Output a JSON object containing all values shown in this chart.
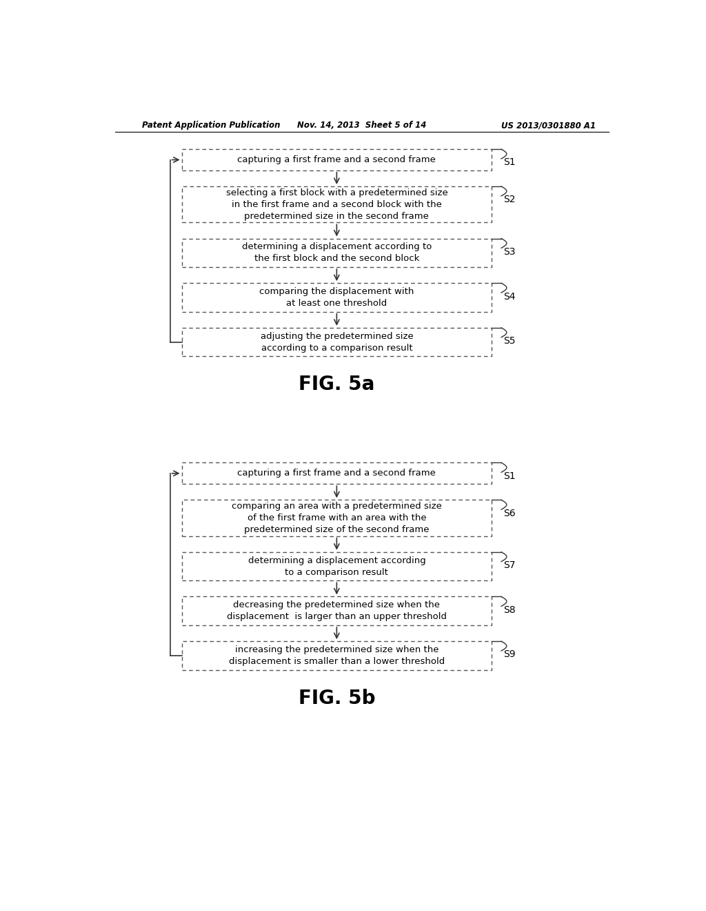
{
  "header_left": "Patent Application Publication",
  "header_mid": "Nov. 14, 2013  Sheet 5 of 14",
  "header_right": "US 2013/0301880 A1",
  "bg_color": "#ffffff",
  "text_color": "#000000",
  "fig5a": {
    "title": "FIG. 5a",
    "steps": [
      {
        "label": "S1",
        "text": "capturing a first frame and a second frame"
      },
      {
        "label": "S2",
        "text": "selecting a first block with a predetermined size\nin the first frame and a second block with the\npredetermined size in the second frame"
      },
      {
        "label": "S3",
        "text": "determining a displacement according to\nthe first block and the second block"
      },
      {
        "label": "S4",
        "text": "comparing the displacement with\nat least one threshold"
      },
      {
        "label": "S5",
        "text": "adjusting the predetermined size\naccording to a comparison result"
      }
    ],
    "has_back_arrow": true
  },
  "fig5b": {
    "title": "FIG. 5b",
    "steps": [
      {
        "label": "S1",
        "text": "capturing a first frame and a second frame"
      },
      {
        "label": "S6",
        "text": "comparing an area with a predetermined size\nof the first frame with an area with the\npredetermined size of the second frame"
      },
      {
        "label": "S7",
        "text": "determining a displacement according\nto a comparison result"
      },
      {
        "label": "S8",
        "text": "decreasing the predetermined size when the\ndisplacement  is larger than an upper threshold"
      },
      {
        "label": "S9",
        "text": "increasing the predetermined size when the\ndisplacement is smaller than a lower threshold"
      }
    ],
    "has_back_arrow": true
  }
}
